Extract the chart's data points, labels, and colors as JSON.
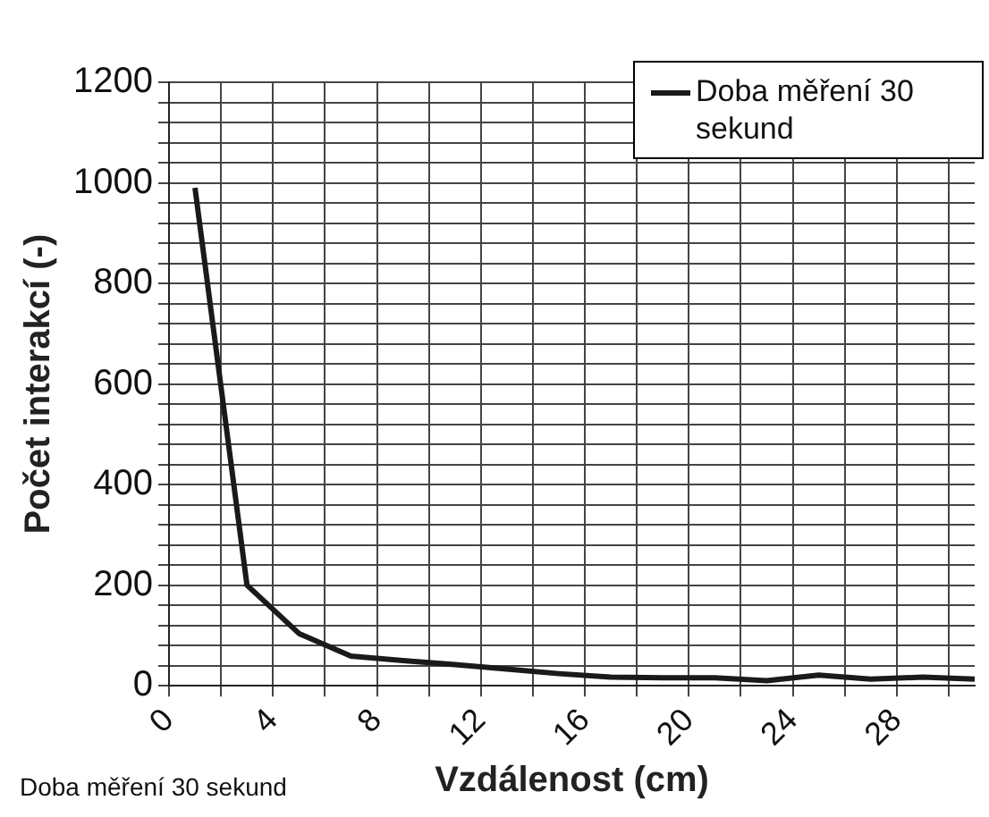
{
  "chart_data": {
    "type": "line",
    "xlabel": "Vzdálenost (cm)",
    "ylabel": "Počet interakcí (-)",
    "x": [
      1,
      3,
      5,
      7,
      9,
      11,
      13,
      15,
      17,
      19,
      21,
      23,
      25,
      27,
      29,
      31
    ],
    "series": [
      {
        "name": "Doba měření 30 sekund",
        "color": "#1a1a1a",
        "values": [
          990,
          200,
          104,
          59,
          50,
          42,
          33,
          24,
          17,
          16,
          16,
          10,
          21,
          13,
          17,
          13
        ]
      }
    ],
    "xlim": [
      0,
      31
    ],
    "xticks": [
      0,
      {
        "value": 2,
        "label": null
      },
      4,
      {
        "value": 6,
        "label": null
      },
      8,
      {
        "value": 10,
        "label": null
      },
      12,
      {
        "value": 14,
        "label": null
      },
      16,
      {
        "value": 18,
        "label": null
      },
      20,
      {
        "value": 22,
        "label": null
      },
      24,
      {
        "value": 26,
        "label": null
      },
      28,
      {
        "value": 30,
        "label": null
      }
    ],
    "ylim": [
      0,
      1200
    ],
    "yticks": [
      0,
      {
        "value": 40,
        "label": null
      },
      {
        "value": 80,
        "label": null
      },
      {
        "value": 120,
        "label": null
      },
      {
        "value": 160,
        "label": null
      },
      200,
      {
        "value": 240,
        "label": null
      },
      {
        "value": 280,
        "label": null
      },
      {
        "value": 320,
        "label": null
      },
      {
        "value": 360,
        "label": null
      },
      400,
      {
        "value": 440,
        "label": null
      },
      {
        "value": 480,
        "label": null
      },
      {
        "value": 520,
        "label": null
      },
      {
        "value": 560,
        "label": null
      },
      600,
      {
        "value": 640,
        "label": null
      },
      {
        "value": 680,
        "label": null
      },
      {
        "value": 720,
        "label": null
      },
      {
        "value": 760,
        "label": null
      },
      800,
      {
        "value": 840,
        "label": null
      },
      {
        "value": 880,
        "label": null
      },
      {
        "value": 920,
        "label": null
      },
      {
        "value": 960,
        "label": null
      },
      1000,
      {
        "value": 1040,
        "label": null
      },
      {
        "value": 1080,
        "label": null
      },
      {
        "value": 1120,
        "label": null
      },
      {
        "value": 1160,
        "label": null
      },
      1200
    ],
    "grid": true,
    "legend": "top right",
    "marker": "none",
    "line_style": "solid",
    "annotations": [
      "Doba měření 30 sekund"
    ]
  }
}
